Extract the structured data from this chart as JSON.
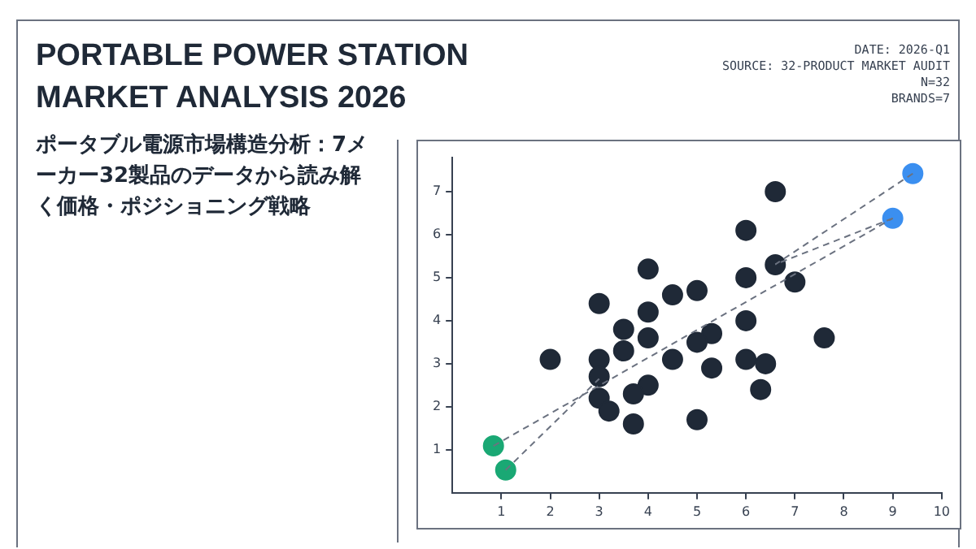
{
  "chart_data": {
    "type": "scatter",
    "title": "PORTABLE POWER STATION MARKET ANALYSIS 2026",
    "subtitle": "ポータブル電源市場構造分析：7メーカー32製品のデータから読み解く価格・ポジショニング戦略",
    "annotations": [
      "DATE: 2026-Q1",
      "SOURCE: 32-PRODUCT MARKET AUDIT",
      "N=32",
      "BRANDS=7"
    ],
    "xlim": [
      0,
      10
    ],
    "xticks": [
      1,
      2,
      3,
      4,
      5,
      6,
      7,
      8,
      9,
      10
    ],
    "ylim": [
      0,
      7.8
    ],
    "yticks": [
      1,
      2,
      3,
      4,
      5,
      6,
      7
    ],
    "grid": false,
    "legend": false,
    "marker": "circle",
    "series": [
      {
        "type": "line",
        "line_style": "dashed",
        "marker": "none",
        "color": "#6b7280",
        "x": [
          9.41,
          6.6
        ],
        "values": [
          7.42,
          5.31
        ]
      },
      {
        "type": "line",
        "line_style": "dashed",
        "marker": "none",
        "color": "#6b7280",
        "x": [
          9.0,
          6.6
        ],
        "values": [
          6.38,
          5.31
        ]
      },
      {
        "type": "line",
        "line_style": "dashed",
        "marker": "none",
        "color": "#6b7280",
        "x": [
          0.84,
          9.0
        ],
        "values": [
          1.09,
          6.38
        ]
      },
      {
        "type": "line",
        "line_style": "dashed",
        "marker": "none",
        "color": "#6b7280",
        "x": [
          1.09,
          3.0
        ],
        "values": [
          0.53,
          2.65
        ]
      },
      {
        "type": "scatter",
        "color": "#1f2937",
        "x": [
          6.6,
          6.0,
          4.0,
          6.6,
          6.0,
          7.0,
          5.0,
          4.5,
          3.0,
          4.0,
          6.0,
          3.5,
          4.0,
          5.3,
          7.6,
          3.5,
          5.0,
          2.0,
          3.0,
          4.5,
          6.0,
          6.4,
          5.3,
          3.0,
          4.0,
          6.3,
          3.7,
          3.0,
          3.2,
          3.7,
          5.0
        ],
        "values": [
          7.0,
          6.1,
          5.2,
          5.3,
          5.0,
          4.9,
          4.7,
          4.6,
          4.4,
          4.2,
          4.0,
          3.8,
          3.6,
          3.7,
          3.6,
          3.3,
          3.5,
          3.1,
          3.1,
          3.1,
          3.1,
          3.0,
          2.9,
          2.7,
          2.5,
          2.4,
          2.3,
          2.2,
          1.9,
          1.6,
          1.7
        ]
      },
      {
        "type": "scatter",
        "color": "#1aa874",
        "x": [
          0.84,
          1.09
        ],
        "values": [
          1.09,
          0.53
        ]
      },
      {
        "type": "scatter",
        "color": "#3b8ff0",
        "x": [
          9.41,
          9.0
        ],
        "values": [
          7.42,
          6.38
        ]
      }
    ]
  }
}
